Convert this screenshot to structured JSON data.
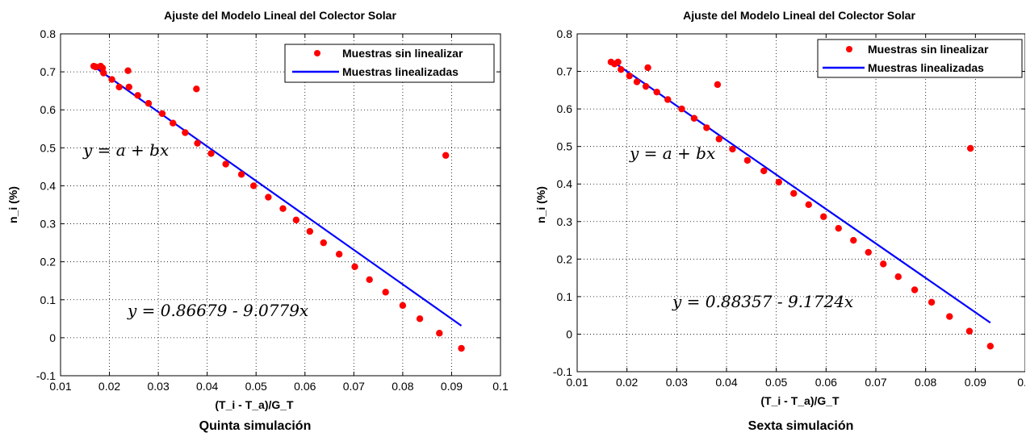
{
  "chart_data": [
    {
      "type": "scatter",
      "title": "Ajuste del Modelo Lineal del Colector Solar",
      "xlabel": "(T_i - T_a)/G_T",
      "ylabel": "n_i (%)",
      "subtitle": "Quinta simulación",
      "xlim": [
        0.01,
        0.1
      ],
      "ylim": [
        -0.1,
        0.8
      ],
      "x_ticks": [
        "0.01",
        "0.02",
        "0.03",
        "0.04",
        "0.05",
        "0.06",
        "0.07",
        "0.08",
        "0.09",
        "0.1"
      ],
      "y_ticks": [
        "-0.1",
        "0",
        "0.1",
        "0.2",
        "0.3",
        "0.4",
        "0.5",
        "0.6",
        "0.7",
        "0.8"
      ],
      "grid": true,
      "legend_position": "top-right",
      "annotations": [
        "y = a + bx",
        "y = 0.86679 - 9.0779x"
      ],
      "series": [
        {
          "name": "Muestras sin linealizar",
          "color": "#ff0000",
          "marker": "dot",
          "x": [
            0.0168,
            0.0172,
            0.0182,
            0.0186,
            0.0188,
            0.0205,
            0.022,
            0.0238,
            0.024,
            0.0258,
            0.028,
            0.0308,
            0.033,
            0.0355,
            0.0378,
            0.038,
            0.0408,
            0.0438,
            0.047,
            0.0495,
            0.0525,
            0.0555,
            0.0582,
            0.061,
            0.0638,
            0.067,
            0.0702,
            0.0732,
            0.0765,
            0.08,
            0.0835,
            0.0875,
            0.0888,
            0.092
          ],
          "y": [
            0.715,
            0.713,
            0.715,
            0.71,
            0.697,
            0.68,
            0.66,
            0.703,
            0.66,
            0.638,
            0.617,
            0.59,
            0.565,
            0.54,
            0.655,
            0.512,
            0.485,
            0.457,
            0.43,
            0.4,
            0.37,
            0.34,
            0.31,
            0.28,
            0.25,
            0.22,
            0.187,
            0.153,
            0.12,
            0.085,
            0.05,
            0.012,
            0.48,
            -0.028
          ]
        },
        {
          "name": "Muestras linealizadas",
          "color": "#0000ff",
          "marker": "line",
          "x": [
            0.017,
            0.092
          ],
          "y": [
            0.7125,
            0.0316
          ]
        }
      ]
    },
    {
      "type": "scatter",
      "title": "Ajuste del Modelo Lineal del Colector Solar",
      "xlabel": "(T_i - T_a)/G_T",
      "ylabel": "n_i (%)",
      "subtitle": "Sexta  simulación",
      "xlim": [
        0.01,
        0.1
      ],
      "ylim": [
        -0.1,
        0.8
      ],
      "x_ticks": [
        "0.01",
        "0.02",
        "0.03",
        "0.04",
        "0.05",
        "0.06",
        "0.07",
        "0.08",
        "0.09",
        "0.1"
      ],
      "y_ticks": [
        "-0.1",
        "0",
        "0.1",
        "0.2",
        "0.3",
        "0.4",
        "0.5",
        "0.6",
        "0.7",
        "0.8"
      ],
      "grid": true,
      "legend_position": "top-right",
      "annotations": [
        "y = a + bx",
        "y = 0.88357 - 9.1724x"
      ],
      "series": [
        {
          "name": "Muestras sin linealizar",
          "color": "#ff0000",
          "marker": "dot",
          "x": [
            0.0168,
            0.0175,
            0.0182,
            0.0188,
            0.0205,
            0.022,
            0.0238,
            0.0242,
            0.026,
            0.0282,
            0.031,
            0.0335,
            0.036,
            0.0382,
            0.0385,
            0.0412,
            0.0442,
            0.0475,
            0.0505,
            0.0535,
            0.0565,
            0.0595,
            0.0625,
            0.0655,
            0.0685,
            0.0715,
            0.0745,
            0.0778,
            0.0812,
            0.0848,
            0.0888,
            0.089,
            0.093
          ],
          "y": [
            0.725,
            0.72,
            0.725,
            0.705,
            0.688,
            0.672,
            0.66,
            0.71,
            0.645,
            0.625,
            0.6,
            0.575,
            0.55,
            0.665,
            0.52,
            0.493,
            0.463,
            0.435,
            0.405,
            0.375,
            0.345,
            0.313,
            0.282,
            0.25,
            0.218,
            0.187,
            0.153,
            0.118,
            0.085,
            0.047,
            0.008,
            0.495,
            -0.032
          ]
        },
        {
          "name": "Muestras linealizadas",
          "color": "#0000ff",
          "marker": "line",
          "x": [
            0.017,
            0.093
          ],
          "y": [
            0.7276,
            0.0305
          ]
        }
      ]
    }
  ]
}
